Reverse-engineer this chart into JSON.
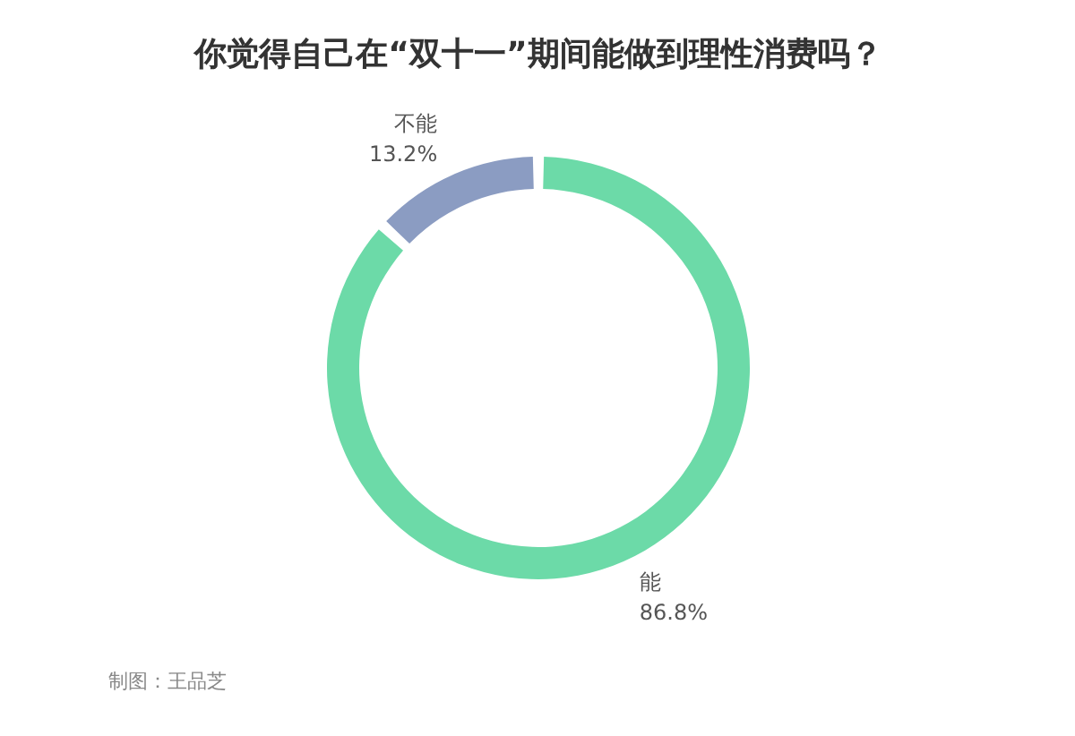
{
  "chart_data": {
    "type": "donut",
    "title": "你觉得自己在“双十一”期间能做到理性消费吗？",
    "categories": [
      "能",
      "不能"
    ],
    "values": [
      86.8,
      13.2
    ],
    "colors": [
      "#6cdaa8",
      "#8b9cc2"
    ],
    "value_labels": [
      "86.8%",
      "13.2%"
    ],
    "annotations": [
      "制图：王品芝"
    ]
  }
}
